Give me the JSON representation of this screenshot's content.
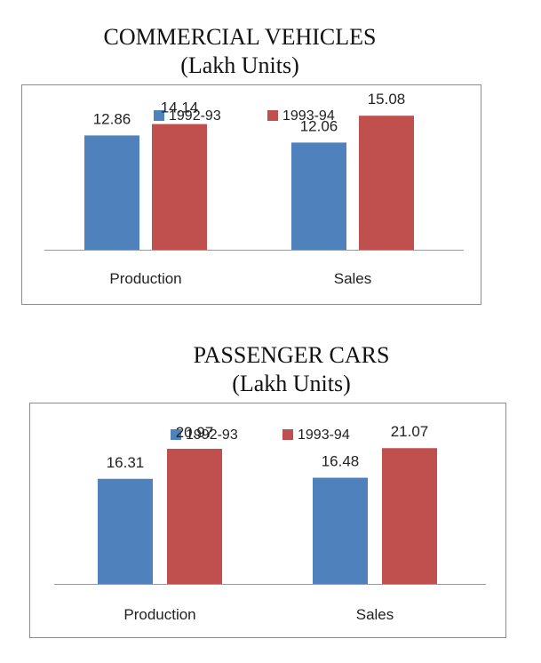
{
  "chart_data": [
    {
      "type": "bar",
      "title": "COMMERCIAL VEHICLES",
      "subtitle": "(Lakh Units)",
      "categories": [
        "Production",
        "Sales"
      ],
      "series": [
        {
          "name": "1992-93",
          "values": [
            12.86,
            12.06
          ]
        },
        {
          "name": "1993-94",
          "values": [
            14.14,
            15.08
          ]
        }
      ],
      "value_labels": [
        [
          "12.86",
          "12.06"
        ],
        [
          "14.14",
          "15.08"
        ]
      ],
      "ylim": [
        0,
        30
      ],
      "grid": false,
      "legend": "top-center",
      "colors": [
        "#4f81bd",
        "#c0504d"
      ]
    },
    {
      "type": "bar",
      "title": "PASSENGER CARS",
      "subtitle": "(Lakh Units)",
      "categories": [
        "Production",
        "Sales"
      ],
      "series": [
        {
          "name": "1992-93",
          "values": [
            16.31,
            16.48
          ]
        },
        {
          "name": "1993-94",
          "values": [
            20.97,
            21.07
          ]
        }
      ],
      "value_labels": [
        [
          "16.31",
          "16.48"
        ],
        [
          "20.97",
          "21.07"
        ]
      ],
      "ylim": [
        0,
        40
      ],
      "grid": false,
      "legend": "top-center",
      "colors": [
        "#4f81bd",
        "#c0504d"
      ]
    }
  ]
}
